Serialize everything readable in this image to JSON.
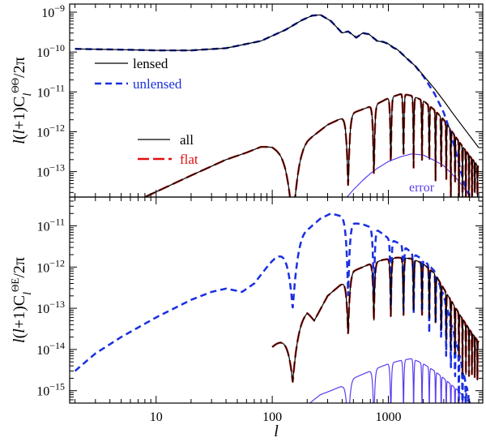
{
  "figure": {
    "xlabel": "l",
    "top_ylabel": "l(l+1)C_l^ΘΘ/2π",
    "bottom_ylabel": "l(l+1)C_l^ΘE/2π"
  },
  "colors": {
    "lensed": "#000000",
    "unlensed": "#1a2fe0",
    "all": "#000000",
    "flat": "#e01010",
    "flat_series": "#c8302a",
    "error": "#5b3df0"
  },
  "chart_data": [
    {
      "type": "line",
      "panel": "top",
      "xscale": "log",
      "yscale": "log",
      "xlim": [
        1.8,
        6500
      ],
      "ylim": [
        2.3e-14,
        1.6e-09
      ],
      "x_ticks": [
        10,
        100,
        1000
      ],
      "x_tick_labels": [
        "10",
        "100",
        "1000"
      ],
      "y_ticks": [
        1e-13,
        1e-12,
        1e-11,
        1e-10,
        1e-09
      ],
      "y_tick_labels": [
        "10",
        "10",
        "10",
        "10",
        "10"
      ],
      "y_tick_exponents": [
        "−13",
        "−12",
        "−11",
        "−10",
        "−9"
      ],
      "legend": [
        {
          "label": "lensed",
          "style": "solid",
          "color": "#000000"
        },
        {
          "label": "unlensed",
          "style": "dashed",
          "color": "#1a2fe0"
        },
        {
          "label": "all",
          "style": "solid",
          "color": "#000000"
        },
        {
          "label": "flat",
          "style": "long-dashed",
          "color": "#e01010"
        }
      ],
      "annotation": "error",
      "series": [
        {
          "name": "lensed",
          "color": "#000000",
          "style": "solid",
          "x": [
            2,
            5,
            10,
            20,
            40,
            80,
            130,
            180,
            220,
            260,
            320,
            400,
            450,
            530,
            600,
            680,
            800,
            900,
            1000,
            1100,
            1200,
            1400,
            1700,
            2000,
            2500,
            3000,
            3500,
            4000,
            5000,
            6000
          ],
          "y": [
            1.2e-10,
            1.15e-10,
            1.1e-10,
            1.1e-10,
            1.25e-10,
            1.9e-10,
            3.6e-10,
            6.3e-10,
            8.2e-10,
            8.6e-10,
            6e-10,
            3e-10,
            3.3e-10,
            2.3e-10,
            3e-10,
            2.8e-10,
            1.9e-10,
            1.8e-10,
            1.6e-10,
            1.3e-10,
            1.15e-10,
            7.5e-11,
            4.5e-11,
            2.6e-11,
            1.2e-11,
            6e-12,
            3.2e-12,
            1.9e-12,
            8e-13,
            4e-13
          ]
        },
        {
          "name": "unlensed",
          "color": "#1a2fe0",
          "style": "dashed",
          "x": [
            2,
            5,
            10,
            20,
            40,
            80,
            130,
            180,
            220,
            260,
            320,
            400,
            450,
            530,
            600,
            680,
            800,
            900,
            1000,
            1100,
            1200,
            1400,
            1700,
            2000,
            2500,
            3000,
            3500,
            4000,
            4500,
            5000
          ],
          "y": [
            1.2e-10,
            1.15e-10,
            1.1e-10,
            1.1e-10,
            1.25e-10,
            1.9e-10,
            3.6e-10,
            6.3e-10,
            8.2e-10,
            8.6e-10,
            6e-10,
            3e-10,
            3.3e-10,
            2.3e-10,
            3e-10,
            2.8e-10,
            1.9e-10,
            1.8e-10,
            1.6e-10,
            1.3e-10,
            1.15e-10,
            7.5e-11,
            4.5e-11,
            2.5e-11,
            9e-12,
            3e-12,
            8e-13,
            1.8e-13,
            5e-14,
            2.5e-14
          ]
        },
        {
          "name": "all",
          "color": "#000000",
          "style": "solid",
          "kind": "oscillating-envelope",
          "x": [
            8,
            20,
            40,
            60,
            80,
            100,
            120,
            150,
            200,
            300,
            500,
            800,
            1000,
            1300,
            1600,
            2000,
            2500,
            3000,
            4000,
            5000,
            6000
          ],
          "y": [
            2.3e-14,
            8e-14,
            2e-13,
            3e-13,
            4.2e-13,
            4.3e-13,
            3.5e-13,
            2.4e-13,
            6e-13,
            1.5e-12,
            3e-12,
            5e-12,
            7e-12,
            9e-12,
            8e-12,
            6e-12,
            3.5e-12,
            2e-12,
            6e-13,
            2.5e-13,
            1.3e-13
          ]
        },
        {
          "name": "flat",
          "color": "#c8302a",
          "style": "long-dashed",
          "kind": "oscillating-envelope",
          "x": [
            8,
            20,
            40,
            60,
            80,
            100,
            120,
            150,
            200,
            300,
            500,
            800,
            1000,
            1300,
            1600,
            2000,
            2500,
            3000,
            4000,
            5000,
            6000
          ],
          "y": [
            2.3e-14,
            8e-14,
            2e-13,
            3e-13,
            4.2e-13,
            4.3e-13,
            3.5e-13,
            2.4e-13,
            6e-13,
            1.5e-12,
            3e-12,
            5e-12,
            7e-12,
            9e-12,
            8e-12,
            6e-12,
            3.5e-12,
            2e-12,
            6e-13,
            2.5e-13,
            1.3e-13
          ]
        },
        {
          "name": "error",
          "color": "#5b3df0",
          "style": "solid",
          "x": [
            440,
            500,
            600,
            700,
            800,
            1000,
            1300,
            1600,
            2000,
            2500,
            3000,
            4000,
            5000
          ],
          "y": [
            2.3e-14,
            3.5e-14,
            6e-14,
            9e-14,
            1.2e-13,
            1.8e-13,
            2.4e-13,
            2.8e-13,
            2.6e-13,
            1.9e-13,
            1.4e-13,
            6e-14,
            2.5e-14
          ]
        }
      ]
    },
    {
      "type": "line",
      "panel": "bottom",
      "xscale": "log",
      "yscale": "log",
      "xlim": [
        1.8,
        6500
      ],
      "ylim": [
        5e-16,
        5e-11
      ],
      "x_ticks": [
        10,
        100,
        1000
      ],
      "x_tick_labels": [
        "10",
        "100",
        "1000"
      ],
      "y_ticks": [
        1e-15,
        1e-14,
        1e-13,
        1e-12,
        1e-11
      ],
      "y_tick_labels": [
        "10",
        "10",
        "10",
        "10",
        "10"
      ],
      "y_tick_exponents": [
        "−15",
        "−14",
        "−13",
        "−12",
        "−11"
      ],
      "series": [
        {
          "name": "unlensed",
          "color": "#1a2fe0",
          "style": "dashed",
          "kind": "oscillating-envelope",
          "x": [
            2,
            3,
            5,
            10,
            20,
            30,
            40,
            55,
            70,
            100,
            150,
            210,
            260,
            320,
            400,
            450,
            600,
            800,
            1000,
            1300,
            1600,
            2000,
            2500,
            3000,
            4000,
            5000
          ],
          "y": [
            3e-15,
            8e-15,
            2e-14,
            6e-14,
            1.6e-13,
            2.5e-13,
            3e-13,
            2.5e-13,
            4e-13,
            1.5e-12,
            6e-12,
            9e-12,
            1.5e-11,
            2e-11,
            1.7e-11,
            1.2e-11,
            1.1e-11,
            8e-12,
            5e-12,
            3.5e-12,
            2.2e-12,
            1.5e-12,
            8e-13,
            2e-13,
            1e-14,
            6e-16
          ]
        },
        {
          "name": "all",
          "color": "#000000",
          "style": "solid",
          "kind": "oscillating-envelope",
          "x": [
            100,
            150,
            200,
            230,
            300,
            400,
            500,
            700,
            900,
            1200,
            1600,
            2000,
            2500,
            3000,
            4000,
            5000,
            6000
          ],
          "y": [
            1.2e-14,
            4e-14,
            8e-14,
            5e-14,
            2e-13,
            4e-13,
            8e-13,
            1.2e-12,
            1.5e-12,
            1.7e-12,
            1.6e-12,
            1.2e-12,
            7e-13,
            3e-13,
            8e-14,
            3e-14,
            1.5e-14
          ]
        },
        {
          "name": "flat",
          "color": "#c8302a",
          "style": "long-dashed",
          "kind": "oscillating-envelope",
          "x": [
            100,
            150,
            200,
            230,
            300,
            400,
            500,
            700,
            900,
            1200,
            1600,
            2000,
            2500,
            3000,
            4000,
            5000,
            6000
          ],
          "y": [
            1.2e-14,
            4e-14,
            8e-14,
            5e-14,
            2e-13,
            4e-13,
            8e-13,
            1.2e-12,
            1.5e-12,
            1.7e-12,
            1.6e-12,
            1.2e-12,
            7e-13,
            3e-13,
            8e-14,
            3e-14,
            1.5e-14
          ]
        },
        {
          "name": "error",
          "color": "#5b3df0",
          "style": "solid",
          "kind": "oscillating-envelope",
          "x": [
            210,
            260,
            320,
            400,
            500,
            600,
            800,
            1000,
            1300,
            1600,
            2000,
            2500,
            3000,
            4000,
            5000
          ],
          "y": [
            5e-16,
            8e-16,
            1e-15,
            1.3e-15,
            2e-15,
            2.5e-15,
            3.5e-15,
            4.5e-15,
            5.5e-15,
            6e-15,
            4.5e-15,
            3e-15,
            2e-15,
            1e-15,
            5e-16
          ]
        }
      ]
    }
  ]
}
